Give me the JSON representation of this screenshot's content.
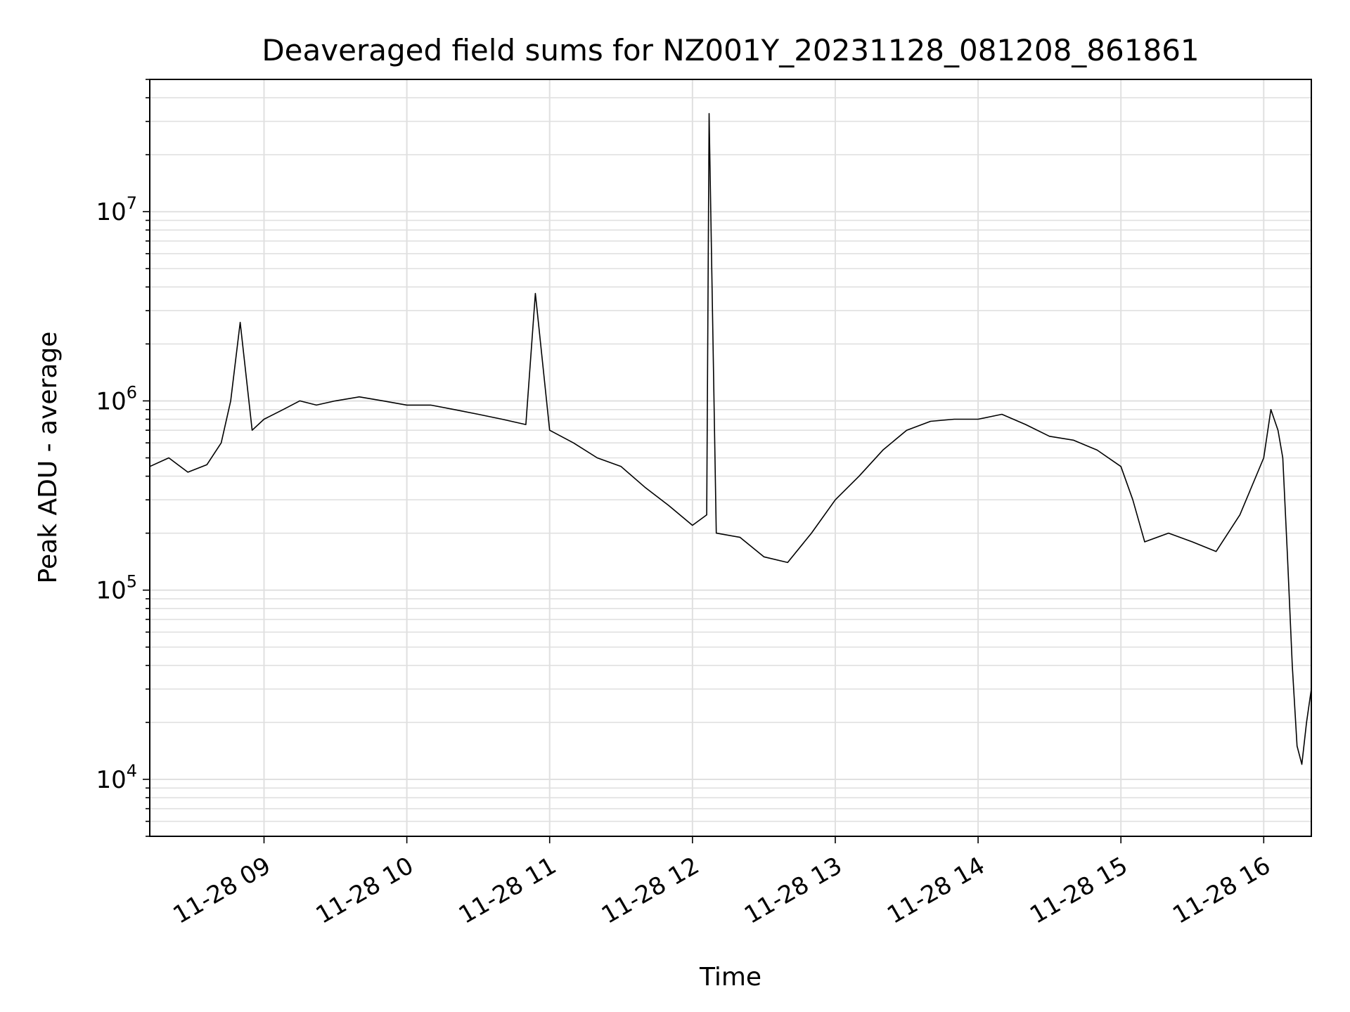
{
  "chart_data": {
    "type": "line",
    "title": "Deaveraged field sums for NZ001Y_20231128_081208_861861",
    "xlabel": "Time",
    "ylabel": "Peak ADU - average",
    "x_scale": "time",
    "y_scale": "log",
    "xlim": [
      "2023-11-28 08:12",
      "2023-11-28 16:20"
    ],
    "ylim": [
      5000,
      50000000
    ],
    "grid": true,
    "line_color": "#000000",
    "grid_color": "#e0e0e0",
    "x_ticks": [
      {
        "value": "2023-11-28 09:00",
        "label": "11-28 09"
      },
      {
        "value": "2023-11-28 10:00",
        "label": "11-28 10"
      },
      {
        "value": "2023-11-28 11:00",
        "label": "11-28 11"
      },
      {
        "value": "2023-11-28 12:00",
        "label": "11-28 12"
      },
      {
        "value": "2023-11-28 13:00",
        "label": "11-28 13"
      },
      {
        "value": "2023-11-28 14:00",
        "label": "11-28 14"
      },
      {
        "value": "2023-11-28 15:00",
        "label": "11-28 15"
      },
      {
        "value": "2023-11-28 16:00",
        "label": "11-28 16"
      }
    ],
    "y_ticks": [
      {
        "value": 10000,
        "base": "10",
        "exp": "4"
      },
      {
        "value": 100000,
        "base": "10",
        "exp": "5"
      },
      {
        "value": 1000000,
        "base": "10",
        "exp": "6"
      },
      {
        "value": 10000000,
        "base": "10",
        "exp": "7"
      }
    ],
    "series": [
      {
        "points": [
          [
            "2023-11-28 08:12",
            450000
          ],
          [
            "2023-11-28 08:20",
            500000
          ],
          [
            "2023-11-28 08:28",
            420000
          ],
          [
            "2023-11-28 08:36",
            460000
          ],
          [
            "2023-11-28 08:42",
            600000
          ],
          [
            "2023-11-28 08:46",
            1000000
          ],
          [
            "2023-11-28 08:50",
            2600000
          ],
          [
            "2023-11-28 08:55",
            700000
          ],
          [
            "2023-11-28 09:00",
            800000
          ],
          [
            "2023-11-28 09:08",
            900000
          ],
          [
            "2023-11-28 09:15",
            1000000
          ],
          [
            "2023-11-28 09:22",
            950000
          ],
          [
            "2023-11-28 09:30",
            1000000
          ],
          [
            "2023-11-28 09:40",
            1050000
          ],
          [
            "2023-11-28 09:50",
            1000000
          ],
          [
            "2023-11-28 10:00",
            950000
          ],
          [
            "2023-11-28 10:10",
            950000
          ],
          [
            "2023-11-28 10:20",
            900000
          ],
          [
            "2023-11-28 10:30",
            850000
          ],
          [
            "2023-11-28 10:40",
            800000
          ],
          [
            "2023-11-28 10:50",
            750000
          ],
          [
            "2023-11-28 10:54",
            3700000
          ],
          [
            "2023-11-28 11:00",
            700000
          ],
          [
            "2023-11-28 11:10",
            600000
          ],
          [
            "2023-11-28 11:20",
            500000
          ],
          [
            "2023-11-28 11:30",
            450000
          ],
          [
            "2023-11-28 11:40",
            350000
          ],
          [
            "2023-11-28 11:50",
            280000
          ],
          [
            "2023-11-28 12:00",
            220000
          ],
          [
            "2023-11-28 12:06",
            250000
          ],
          [
            "2023-11-28 12:07",
            33000000
          ],
          [
            "2023-11-28 12:10",
            200000
          ],
          [
            "2023-11-28 12:20",
            190000
          ],
          [
            "2023-11-28 12:30",
            150000
          ],
          [
            "2023-11-28 12:40",
            140000
          ],
          [
            "2023-11-28 12:50",
            200000
          ],
          [
            "2023-11-28 13:00",
            300000
          ],
          [
            "2023-11-28 13:10",
            400000
          ],
          [
            "2023-11-28 13:20",
            550000
          ],
          [
            "2023-11-28 13:30",
            700000
          ],
          [
            "2023-11-28 13:40",
            780000
          ],
          [
            "2023-11-28 13:50",
            800000
          ],
          [
            "2023-11-28 14:00",
            800000
          ],
          [
            "2023-11-28 14:10",
            850000
          ],
          [
            "2023-11-28 14:20",
            750000
          ],
          [
            "2023-11-28 14:30",
            650000
          ],
          [
            "2023-11-28 14:40",
            620000
          ],
          [
            "2023-11-28 14:50",
            550000
          ],
          [
            "2023-11-28 15:00",
            450000
          ],
          [
            "2023-11-28 15:05",
            300000
          ],
          [
            "2023-11-28 15:10",
            180000
          ],
          [
            "2023-11-28 15:20",
            200000
          ],
          [
            "2023-11-28 15:30",
            180000
          ],
          [
            "2023-11-28 15:40",
            160000
          ],
          [
            "2023-11-28 15:50",
            250000
          ],
          [
            "2023-11-28 16:00",
            500000
          ],
          [
            "2023-11-28 16:03",
            900000
          ],
          [
            "2023-11-28 16:06",
            700000
          ],
          [
            "2023-11-28 16:08",
            500000
          ],
          [
            "2023-11-28 16:10",
            150000
          ],
          [
            "2023-11-28 16:12",
            40000
          ],
          [
            "2023-11-28 16:14",
            15000
          ],
          [
            "2023-11-28 16:16",
            12000
          ],
          [
            "2023-11-28 16:18",
            20000
          ],
          [
            "2023-11-28 16:20",
            30000
          ]
        ]
      }
    ]
  }
}
